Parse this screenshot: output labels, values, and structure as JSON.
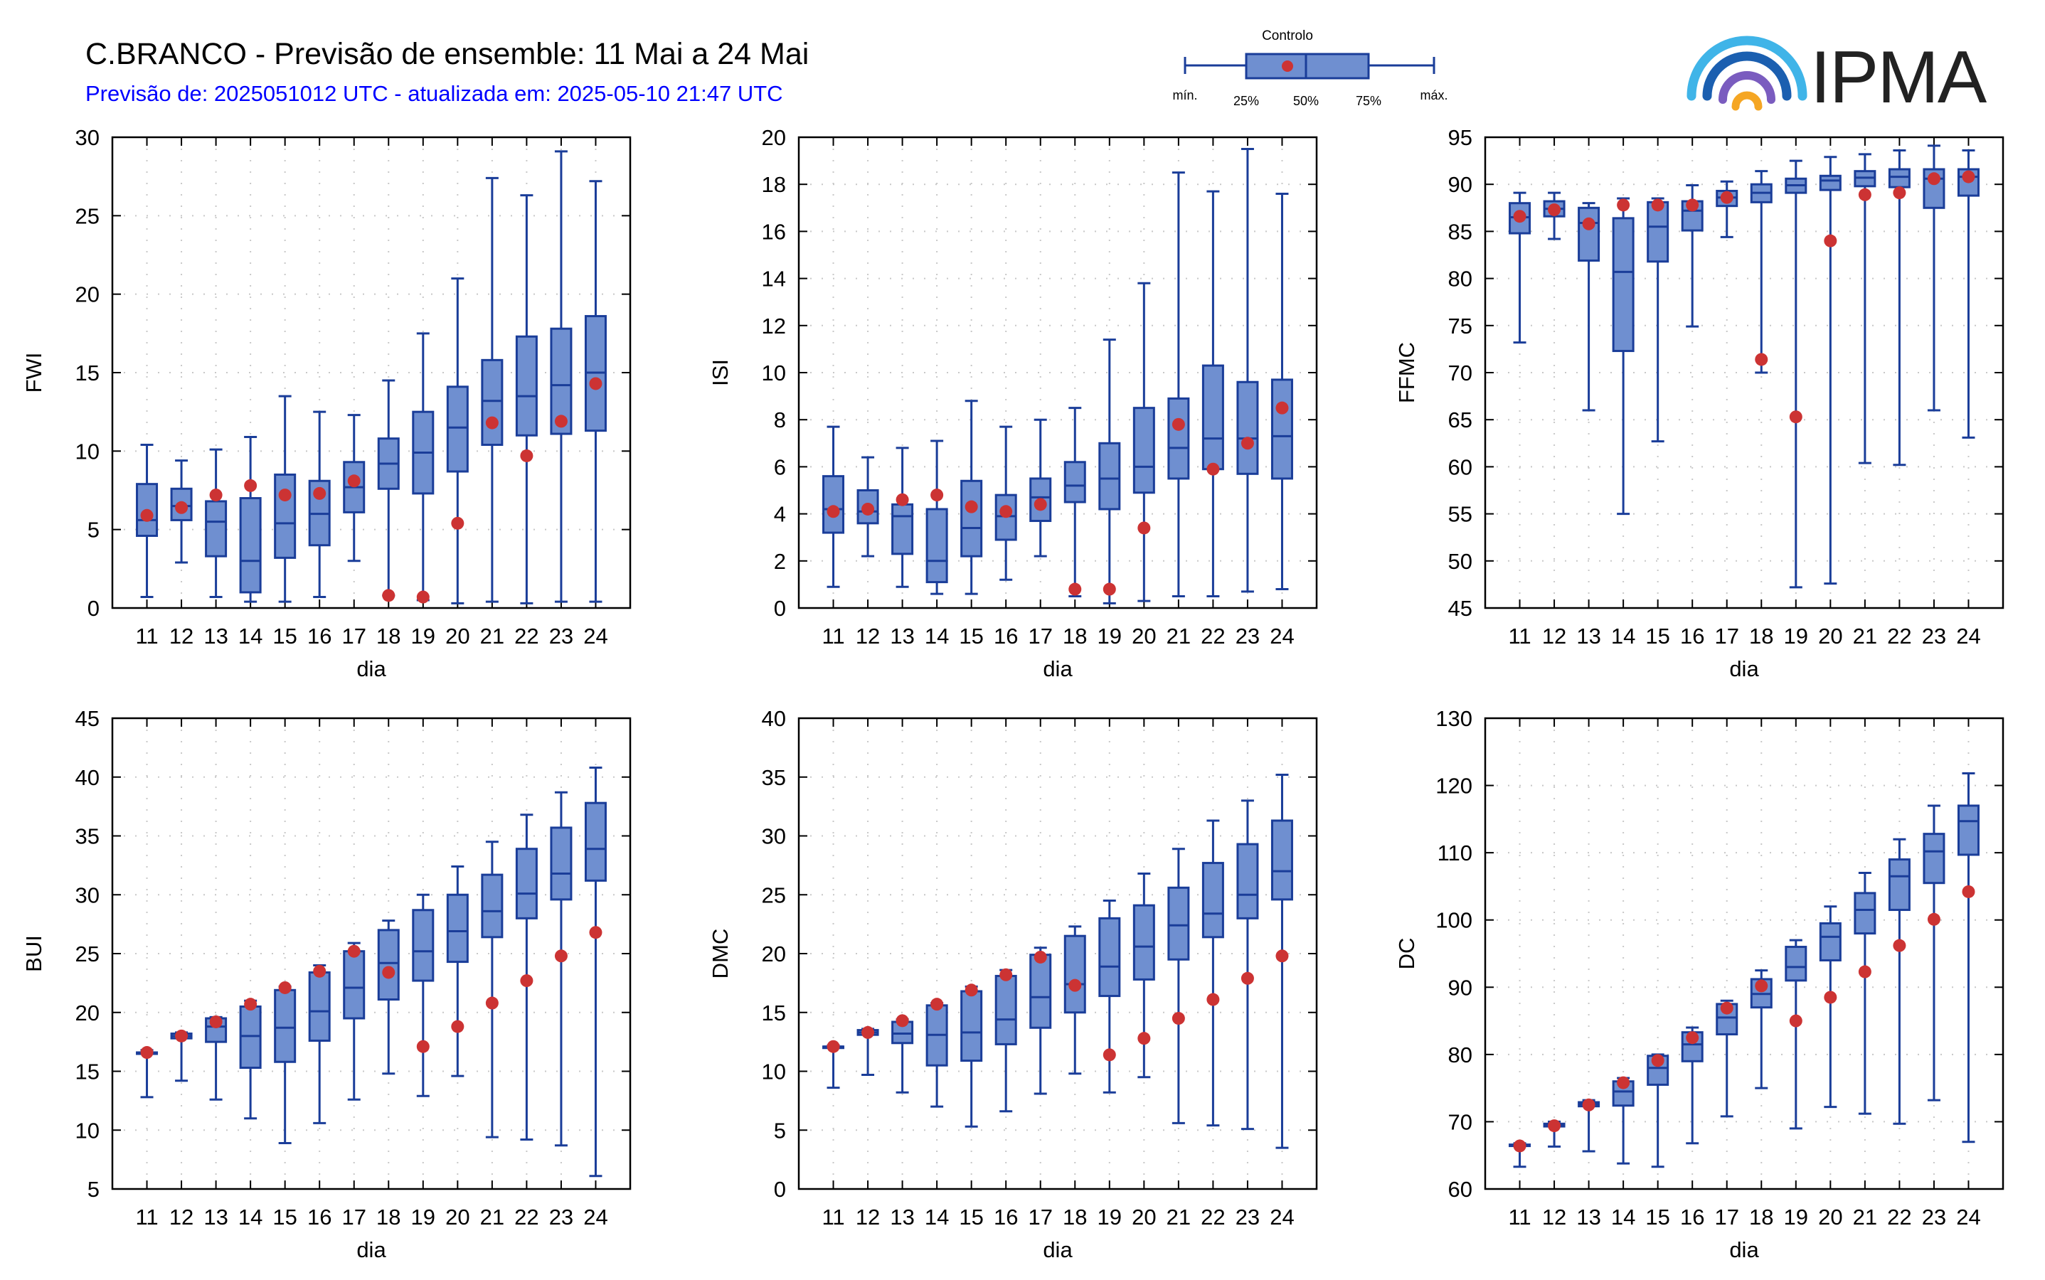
{
  "header": {
    "title": "C.BRANCO - Previsão de ensemble: 11 Mai a 24 Mai",
    "subtitle": "Previsão de: 2025051012 UTC - atualizada em: 2025-05-10 21:47 UTC"
  },
  "legend": {
    "control": "Controlo",
    "min": "mín.",
    "p25": "25%",
    "p50": "50%",
    "p75": "75%",
    "max": "máx."
  },
  "logo": {
    "text": "IPMA"
  },
  "colors": {
    "box": "#6f8fd0",
    "line": "#1a3d99",
    "control": "#cc3333",
    "grid": "#c8c8c8"
  },
  "chart_data": [
    {
      "type": "box",
      "ylabel": "FWI",
      "xlabel": "dia",
      "ylim": [
        0,
        30
      ],
      "ystep": 5,
      "categories": [
        "11",
        "12",
        "13",
        "14",
        "15",
        "16",
        "17",
        "18",
        "19",
        "20",
        "21",
        "22",
        "23",
        "24"
      ],
      "min": [
        0.7,
        2.9,
        0.7,
        0.4,
        0.4,
        0.7,
        3.0,
        0.8,
        0.5,
        0.3,
        0.4,
        0.3,
        0.4,
        0.4
      ],
      "q1": [
        4.6,
        5.6,
        3.3,
        1.0,
        3.2,
        4.0,
        6.1,
        7.6,
        7.3,
        8.7,
        10.4,
        11.0,
        11.1,
        11.3
      ],
      "median": [
        5.6,
        6.5,
        5.5,
        3.0,
        5.4,
        6.0,
        7.7,
        9.2,
        9.9,
        11.5,
        13.2,
        13.5,
        14.2,
        15.0
      ],
      "q3": [
        7.9,
        7.6,
        6.8,
        7.0,
        8.5,
        8.1,
        9.3,
        10.8,
        12.5,
        14.1,
        15.8,
        17.3,
        17.8,
        18.6
      ],
      "max": [
        10.4,
        9.4,
        10.1,
        10.9,
        13.5,
        12.5,
        12.3,
        14.5,
        17.5,
        21.0,
        27.4,
        26.3,
        29.1,
        27.2
      ],
      "control": [
        5.9,
        6.4,
        7.2,
        7.8,
        7.2,
        7.3,
        8.1,
        0.8,
        0.7,
        5.4,
        11.8,
        9.7,
        11.9,
        14.3
      ]
    },
    {
      "type": "box",
      "ylabel": "ISI",
      "xlabel": "dia",
      "ylim": [
        0,
        20
      ],
      "ystep": 2,
      "categories": [
        "11",
        "12",
        "13",
        "14",
        "15",
        "16",
        "17",
        "18",
        "19",
        "20",
        "21",
        "22",
        "23",
        "24"
      ],
      "min": [
        0.9,
        2.2,
        0.9,
        0.6,
        0.6,
        1.2,
        2.2,
        0.5,
        0.2,
        0.3,
        0.5,
        0.5,
        0.7,
        0.8
      ],
      "q1": [
        3.2,
        3.6,
        2.3,
        1.1,
        2.2,
        2.9,
        3.7,
        4.5,
        4.2,
        4.9,
        5.5,
        5.9,
        5.7,
        5.5
      ],
      "median": [
        4.2,
        4.1,
        3.9,
        2.0,
        3.4,
        3.9,
        4.7,
        5.2,
        5.5,
        6.0,
        6.8,
        7.2,
        7.2,
        7.3
      ],
      "q3": [
        5.6,
        5.0,
        4.4,
        4.2,
        5.4,
        4.8,
        5.5,
        6.2,
        7.0,
        8.5,
        8.9,
        10.3,
        9.6,
        9.7
      ],
      "max": [
        7.7,
        6.4,
        6.8,
        7.1,
        8.8,
        7.7,
        8.0,
        8.5,
        11.4,
        13.8,
        18.5,
        17.7,
        19.5,
        17.6
      ],
      "control": [
        4.1,
        4.2,
        4.6,
        4.8,
        4.3,
        4.1,
        4.4,
        0.8,
        0.8,
        3.4,
        7.8,
        5.9,
        7.0,
        8.5
      ]
    },
    {
      "type": "box",
      "ylabel": "FFMC",
      "xlabel": "dia",
      "ylim": [
        45,
        95
      ],
      "ystep": 5,
      "categories": [
        "11",
        "12",
        "13",
        "14",
        "15",
        "16",
        "17",
        "18",
        "19",
        "20",
        "21",
        "22",
        "23",
        "24"
      ],
      "min": [
        73.2,
        84.2,
        66.0,
        55.0,
        62.7,
        74.9,
        84.4,
        70.0,
        47.2,
        47.6,
        60.4,
        60.2,
        66.0,
        63.1
      ],
      "q1": [
        84.8,
        86.6,
        81.9,
        72.3,
        81.8,
        85.1,
        87.7,
        88.1,
        89.1,
        89.4,
        89.8,
        89.7,
        87.5,
        88.8
      ],
      "median": [
        86.5,
        87.4,
        85.9,
        80.7,
        85.5,
        87.2,
        88.6,
        89.1,
        89.9,
        90.4,
        90.7,
        90.8,
        90.6,
        90.8
      ],
      "q3": [
        88.0,
        88.2,
        87.5,
        86.4,
        88.1,
        88.2,
        89.3,
        90.0,
        90.6,
        90.9,
        91.4,
        91.6,
        91.6,
        91.6
      ],
      "max": [
        89.1,
        89.1,
        88.0,
        88.5,
        88.5,
        89.9,
        90.3,
        91.4,
        92.5,
        92.9,
        93.2,
        93.6,
        94.1,
        93.6
      ],
      "control": [
        86.6,
        87.3,
        85.8,
        87.8,
        87.8,
        87.8,
        88.6,
        71.4,
        65.3,
        84.0,
        88.9,
        89.1,
        90.6,
        90.8
      ]
    },
    {
      "type": "box",
      "ylabel": "BUI",
      "xlabel": "dia",
      "ylim": [
        5,
        45
      ],
      "ystep": 5,
      "categories": [
        "11",
        "12",
        "13",
        "14",
        "15",
        "16",
        "17",
        "18",
        "19",
        "20",
        "21",
        "22",
        "23",
        "24"
      ],
      "min": [
        12.8,
        14.2,
        12.6,
        11.0,
        8.9,
        10.6,
        12.6,
        14.8,
        12.9,
        14.6,
        9.4,
        9.2,
        8.7,
        6.1
      ],
      "q1": [
        16.6,
        17.8,
        17.5,
        15.3,
        15.8,
        17.6,
        19.5,
        21.1,
        22.7,
        24.3,
        26.4,
        28.0,
        29.6,
        31.2
      ],
      "median": [
        16.6,
        18.0,
        18.8,
        18.0,
        18.7,
        20.1,
        22.1,
        24.2,
        25.2,
        26.9,
        28.6,
        30.1,
        31.8,
        33.9
      ],
      "q3": [
        16.6,
        18.2,
        19.5,
        20.5,
        21.9,
        23.4,
        25.2,
        27.0,
        28.7,
        30.0,
        31.7,
        33.9,
        35.7,
        37.8
      ],
      "max": [
        16.8,
        18.3,
        19.6,
        21.0,
        22.2,
        24.0,
        25.9,
        27.8,
        30.0,
        32.4,
        34.5,
        36.8,
        38.7,
        40.8
      ],
      "control": [
        16.6,
        18.0,
        19.2,
        20.7,
        22.1,
        23.5,
        25.2,
        23.4,
        17.1,
        18.8,
        20.8,
        22.7,
        24.8,
        26.8
      ]
    },
    {
      "type": "box",
      "ylabel": "DMC",
      "xlabel": "dia",
      "ylim": [
        0,
        40
      ],
      "ystep": 5,
      "categories": [
        "11",
        "12",
        "13",
        "14",
        "15",
        "16",
        "17",
        "18",
        "19",
        "20",
        "21",
        "22",
        "23",
        "24"
      ],
      "min": [
        8.6,
        9.7,
        8.2,
        7.0,
        5.3,
        6.6,
        8.1,
        9.8,
        8.2,
        9.5,
        5.6,
        5.4,
        5.1,
        3.5
      ],
      "q1": [
        12.1,
        13.1,
        12.4,
        10.5,
        10.9,
        12.3,
        13.7,
        15.0,
        16.4,
        17.8,
        19.5,
        21.4,
        23.0,
        24.6
      ],
      "median": [
        12.1,
        13.3,
        13.2,
        13.1,
        13.3,
        14.4,
        16.3,
        17.4,
        18.9,
        20.6,
        22.4,
        23.4,
        25.0,
        27.0
      ],
      "q3": [
        12.1,
        13.5,
        14.2,
        15.6,
        16.8,
        18.1,
        19.9,
        21.5,
        23.0,
        24.1,
        25.6,
        27.7,
        29.3,
        31.3
      ],
      "max": [
        12.2,
        13.6,
        14.4,
        15.8,
        17.2,
        18.6,
        20.5,
        22.3,
        24.5,
        26.8,
        28.9,
        31.3,
        33.0,
        35.2
      ],
      "control": [
        12.1,
        13.3,
        14.3,
        15.7,
        16.9,
        18.2,
        19.7,
        17.3,
        11.4,
        12.8,
        14.5,
        16.1,
        17.9,
        19.8
      ]
    },
    {
      "type": "box",
      "ylabel": "DC",
      "xlabel": "dia",
      "ylim": [
        60,
        130
      ],
      "ystep": 10,
      "categories": [
        "11",
        "12",
        "13",
        "14",
        "15",
        "16",
        "17",
        "18",
        "19",
        "20",
        "21",
        "22",
        "23",
        "24"
      ],
      "min": [
        63.3,
        66.3,
        65.6,
        63.8,
        63.3,
        66.8,
        70.8,
        75.0,
        69.0,
        72.2,
        71.2,
        69.7,
        73.2,
        67.0
      ],
      "q1": [
        66.4,
        69.3,
        72.3,
        72.4,
        75.5,
        79.0,
        83.0,
        87.0,
        91.0,
        94.0,
        98.0,
        101.5,
        105.5,
        109.7
      ],
      "median": [
        66.5,
        69.5,
        72.6,
        74.5,
        78.0,
        81.5,
        85.5,
        89.0,
        93.0,
        97.5,
        101.5,
        106.5,
        110.2,
        114.7
      ],
      "q3": [
        66.6,
        69.7,
        72.9,
        76.0,
        79.8,
        83.3,
        87.5,
        91.2,
        96.0,
        99.5,
        104.0,
        109.0,
        112.8,
        117.0
      ],
      "max": [
        66.8,
        70.0,
        73.2,
        76.5,
        80.0,
        84.0,
        88.0,
        92.5,
        97.0,
        102.0,
        107.0,
        112.0,
        117.0,
        121.8
      ],
      "control": [
        66.4,
        69.4,
        72.5,
        75.8,
        79.1,
        82.5,
        86.9,
        90.2,
        85.0,
        88.5,
        92.3,
        96.2,
        100.1,
        104.2
      ]
    }
  ]
}
